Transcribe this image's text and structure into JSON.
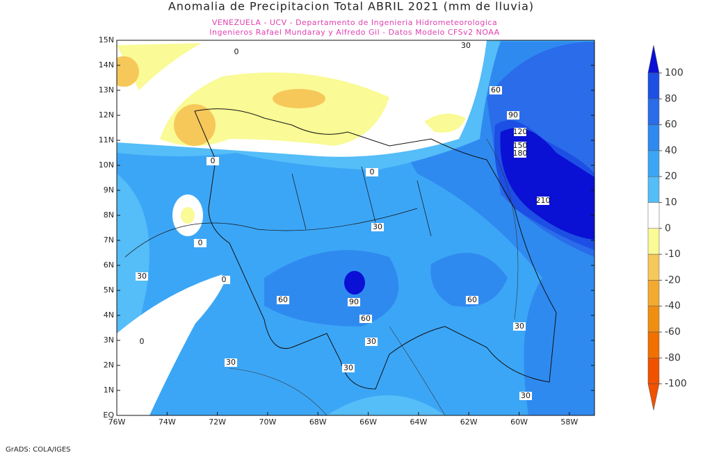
{
  "title": "Anomalia de Precipitacion Total ABRIL 2021 (mm de lluvia)",
  "subtitle_1": "VENEZUELA - UCV - Departamento de Ingenieria Hidrometeorologica",
  "subtitle_2": "Ingenieros Rafael Mundaray y Alfredo Gil - Datos Modelo CFSv2 NOAA",
  "lat_labels": [
    "15N",
    "14N",
    "13N",
    "12N",
    "11N",
    "10N",
    "9N",
    "8N",
    "7N",
    "6N",
    "5N",
    "4N",
    "3N",
    "2N",
    "1N",
    "EQ"
  ],
  "lon_labels": [
    "76W",
    "74W",
    "72W",
    "70W",
    "68W",
    "66W",
    "64W",
    "62W",
    "60W",
    "58W"
  ],
  "contour_labels": [
    "0",
    "30",
    "60",
    "90",
    "120",
    "150",
    "180",
    "210",
    "0",
    "0",
    "30",
    "0",
    "30",
    "0",
    "60",
    "90",
    "60",
    "30",
    "60",
    "30",
    "0",
    "30",
    "30",
    "30"
  ],
  "colorbar": {
    "levels": [
      100,
      80,
      60,
      40,
      20,
      10,
      0,
      -10,
      -20,
      -40,
      -60,
      -80,
      -100
    ],
    "colors": [
      "#0a10d4",
      "#1d4fe4",
      "#2a6cea",
      "#2f8af0",
      "#3ca6f6",
      "#55bdf8",
      "#ffffff",
      "#fafa96",
      "#f6c85a",
      "#f2aa30",
      "#f08e12",
      "#f07000",
      "#f05200"
    ]
  },
  "footer": "GrADS: COLA/IGES"
}
